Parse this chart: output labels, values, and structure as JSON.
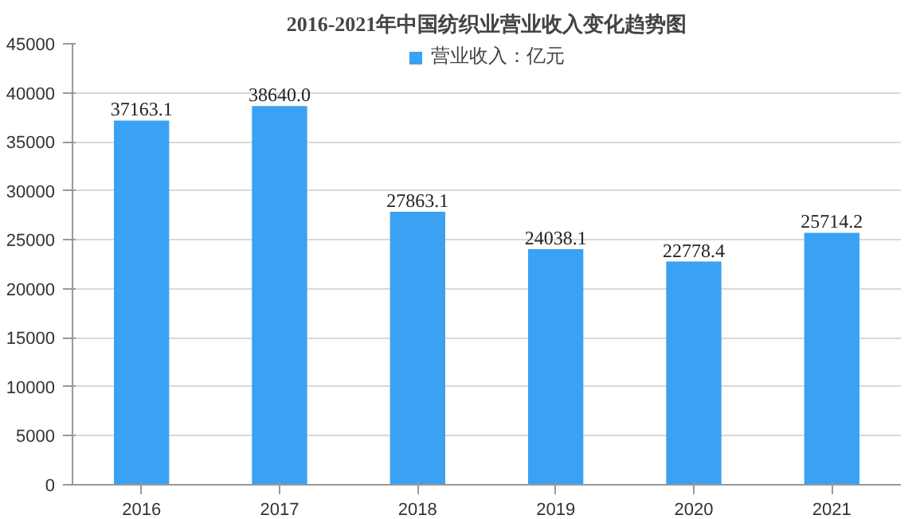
{
  "chart_data": {
    "type": "bar",
    "title": "2016-2021年中国纺织业营业收入变化趋势图",
    "categories": [
      "2016",
      "2017",
      "2018",
      "2019",
      "2020",
      "2021"
    ],
    "series": [
      {
        "name": "营业收入：亿元",
        "color": "#3ba1f2",
        "values": [
          37163.1,
          38640.0,
          27863.1,
          24038.1,
          22778.4,
          25714.2
        ]
      }
    ],
    "value_labels": [
      "37163.1",
      "38640.0",
      "27863.1",
      "24038.1",
      "22778.4",
      "25714.2"
    ],
    "ylim": [
      0,
      45000
    ],
    "yticks": [
      0,
      5000,
      10000,
      15000,
      20000,
      25000,
      30000,
      35000,
      40000,
      45000
    ],
    "grid": "y",
    "legend": "top"
  }
}
